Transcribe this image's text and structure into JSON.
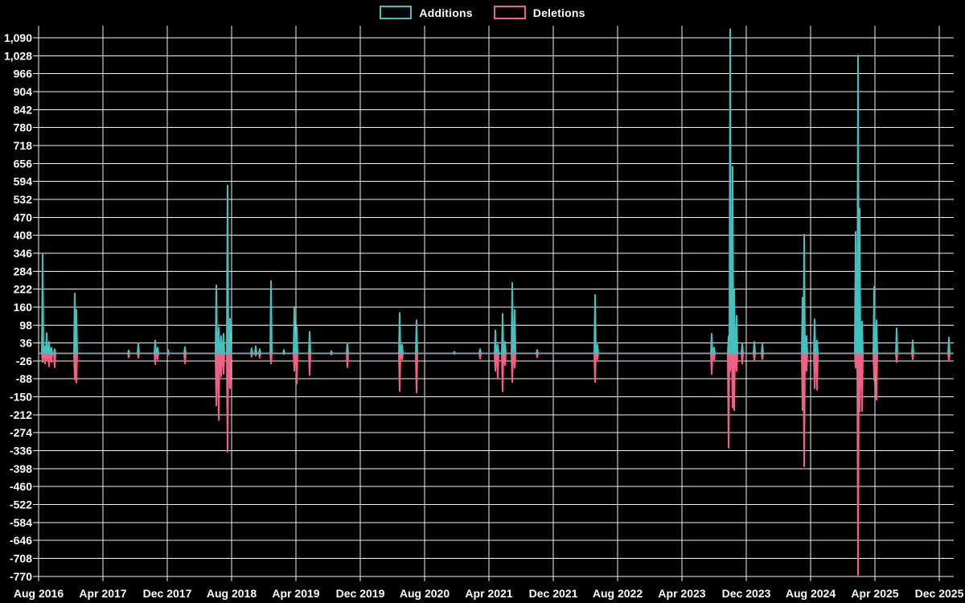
{
  "legend": {
    "items": [
      {
        "label": "Additions",
        "color": "#46bfbf"
      },
      {
        "label": "Deletions",
        "color": "#f25f87"
      }
    ]
  },
  "colors": {
    "background": "#000000",
    "grid": "#f2f2f2",
    "axis_text": "#ffffff",
    "baseline": "#7f99a0",
    "additions": "#46bfbf",
    "deletions": "#f25f87"
  },
  "chart_data": {
    "type": "line",
    "title": "",
    "xlabel": "",
    "ylabel": "",
    "legend_position": "top-center",
    "grid": true,
    "series_names": [
      "Additions",
      "Deletions"
    ],
    "x_axis": {
      "tick_labels": [
        "Aug 2016",
        "Apr 2017",
        "Dec 2017",
        "Aug 2018",
        "Apr 2019",
        "Dec 2019",
        "Aug 2020",
        "Apr 2021",
        "Dec 2021",
        "Aug 2022",
        "Apr 2023",
        "Dec 2023",
        "Aug 2024",
        "Apr 2025",
        "Dec 2025"
      ],
      "months_per_tick": 8
    },
    "y_axis": {
      "tick_labels": [
        "1,090",
        "1,028",
        "966",
        "904",
        "842",
        "780",
        "718",
        "656",
        "594",
        "532",
        "470",
        "408",
        "346",
        "284",
        "222",
        "160",
        "98",
        "36",
        "-26",
        "-88",
        "-150",
        "-212",
        "-274",
        "-336",
        "-398",
        "-460",
        "-522",
        "-584",
        "-646",
        "-708",
        "-770"
      ],
      "min": -770,
      "max": 1090,
      "step": 62
    },
    "baseline_value": 0,
    "points_format": [
      "months_since_Aug_2016",
      "additions",
      "deletions"
    ],
    "points": [
      [
        0.5,
        345,
        -30
      ],
      [
        0.8,
        25,
        -35
      ],
      [
        1.0,
        70,
        -25
      ],
      [
        1.3,
        40,
        -45
      ],
      [
        1.6,
        20,
        -30
      ],
      [
        2.0,
        15,
        -48
      ],
      [
        4.5,
        207,
        -90
      ],
      [
        4.7,
        150,
        -101
      ],
      [
        11.2,
        10,
        -14
      ],
      [
        12.4,
        36,
        -15
      ],
      [
        14.5,
        45,
        -37
      ],
      [
        14.8,
        20,
        -20
      ],
      [
        16.1,
        12,
        -6
      ],
      [
        18.2,
        22,
        -35
      ],
      [
        22.1,
        235,
        -180
      ],
      [
        22.4,
        90,
        -230
      ],
      [
        22.7,
        60,
        -80
      ],
      [
        23.0,
        68,
        -71
      ],
      [
        23.5,
        580,
        -340
      ],
      [
        23.8,
        120,
        -120
      ],
      [
        26.5,
        18,
        -12
      ],
      [
        27.0,
        25,
        -8
      ],
      [
        27.5,
        15,
        -15
      ],
      [
        28.9,
        250,
        -35
      ],
      [
        30.5,
        12,
        -3
      ],
      [
        31.8,
        160,
        -60
      ],
      [
        32.1,
        90,
        -104
      ],
      [
        33.7,
        75,
        -75
      ],
      [
        36.4,
        8,
        -4
      ],
      [
        38.4,
        36,
        -48
      ],
      [
        44.9,
        140,
        -130
      ],
      [
        45.2,
        30,
        -20
      ],
      [
        47.0,
        115,
        -135
      ],
      [
        51.7,
        6,
        -2
      ],
      [
        54.9,
        15,
        -18
      ],
      [
        56.8,
        80,
        -60
      ],
      [
        57.1,
        30,
        -85
      ],
      [
        57.7,
        137,
        -131
      ],
      [
        58.0,
        40,
        -40
      ],
      [
        58.9,
        244,
        -99
      ],
      [
        59.2,
        150,
        -50
      ],
      [
        62.0,
        12,
        -14
      ],
      [
        69.2,
        202,
        -99
      ],
      [
        69.5,
        30,
        -20
      ],
      [
        83.7,
        68,
        -71
      ],
      [
        84.0,
        20,
        -25
      ],
      [
        85.8,
        60,
        -326
      ],
      [
        86.0,
        1120,
        -60
      ],
      [
        86.3,
        645,
        -187
      ],
      [
        86.5,
        220,
        -196
      ],
      [
        86.8,
        130,
        -60
      ],
      [
        87.5,
        35,
        -35
      ],
      [
        89.0,
        40,
        -25
      ],
      [
        90.0,
        32,
        -20
      ],
      [
        95.0,
        193,
        -196
      ],
      [
        95.2,
        410,
        -390
      ],
      [
        95.5,
        60,
        -60
      ],
      [
        96.5,
        118,
        -121
      ],
      [
        96.8,
        45,
        -126
      ],
      [
        101.6,
        420,
        -50
      ],
      [
        101.9,
        1030,
        -765
      ],
      [
        102.1,
        500,
        -200
      ],
      [
        102.4,
        110,
        -200
      ],
      [
        103.9,
        230,
        -93
      ],
      [
        104.2,
        115,
        -160
      ],
      [
        106.7,
        87,
        -30
      ],
      [
        108.7,
        45,
        -20
      ],
      [
        113.2,
        55,
        -25
      ]
    ]
  }
}
